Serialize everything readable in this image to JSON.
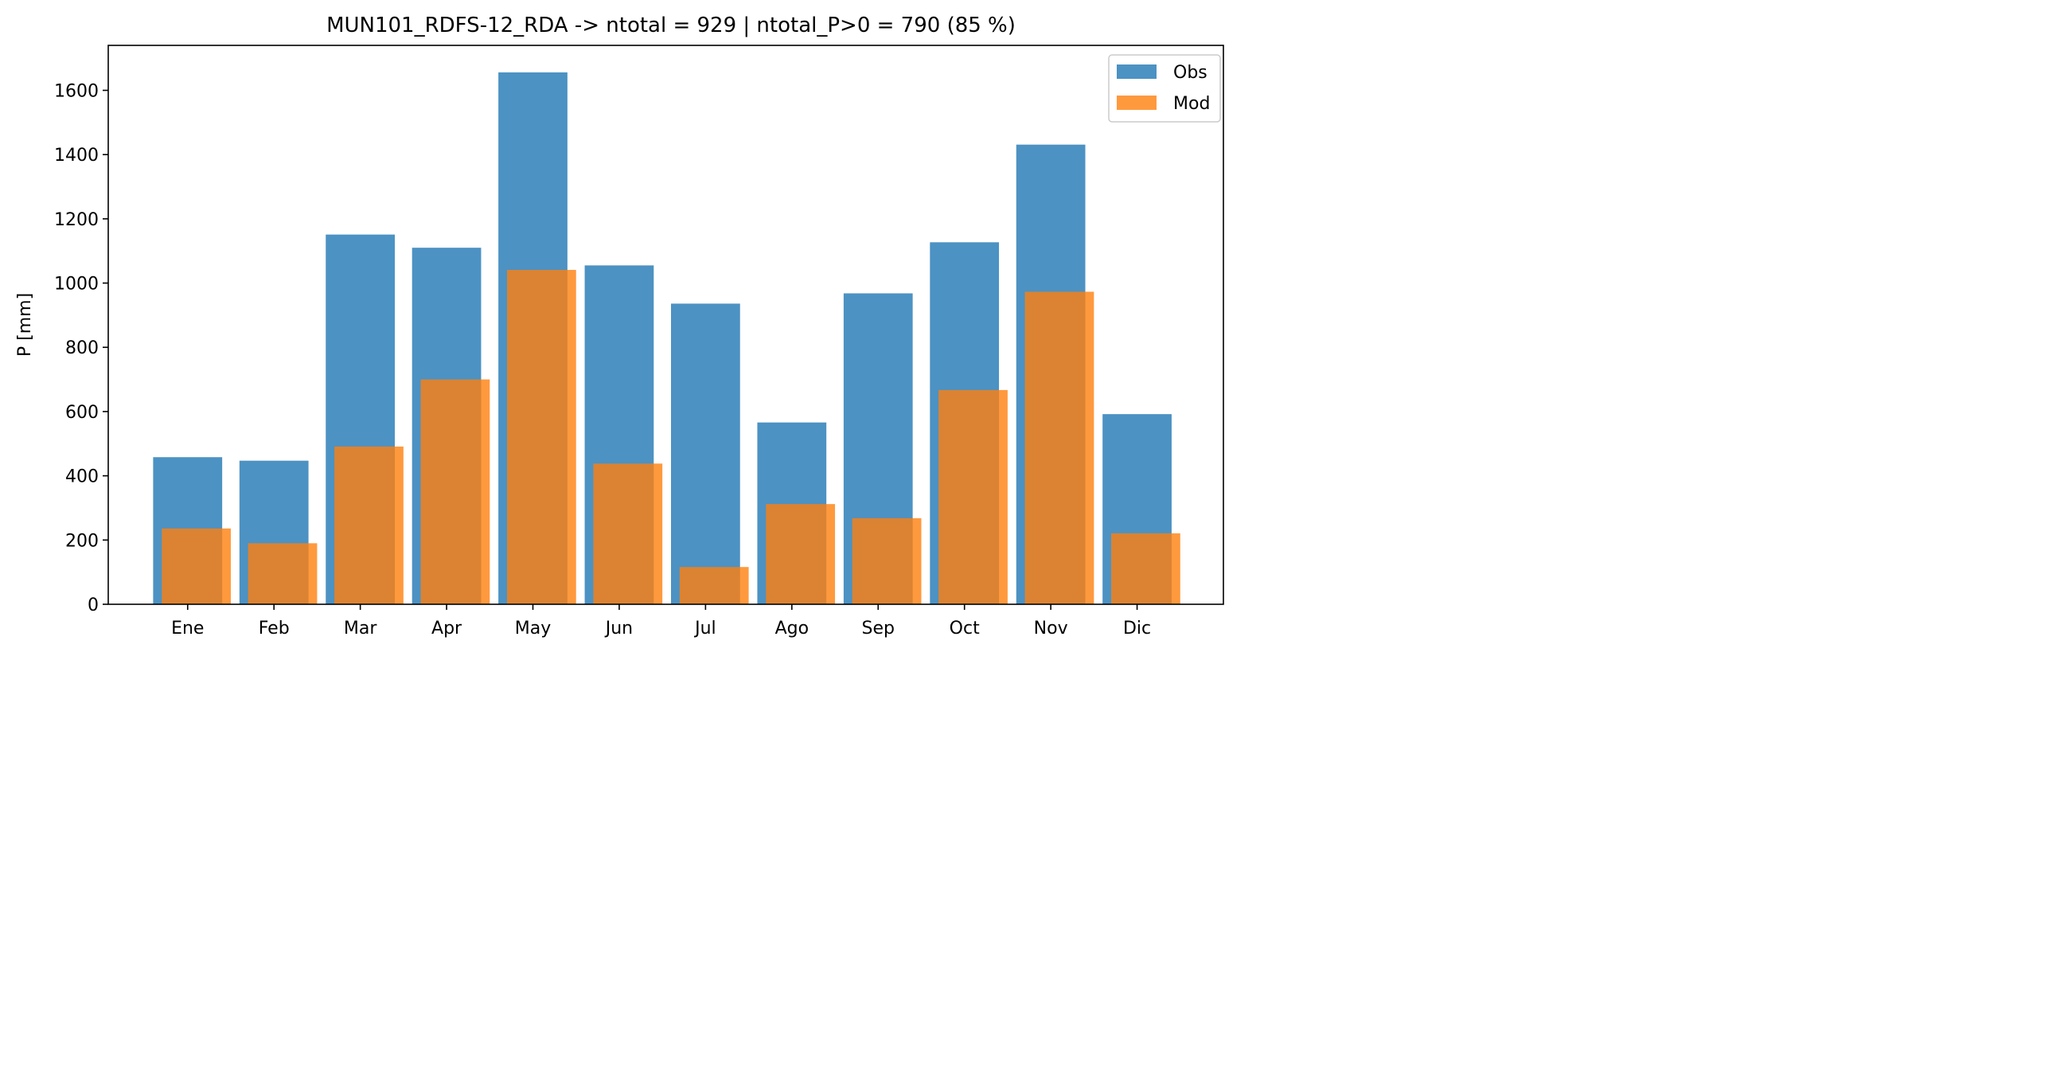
{
  "chart_data": {
    "type": "bar",
    "title": "MUN101_RDFS-12_RDA -> ntotal = 929 | ntotal_P>0 = 790 (85 %)",
    "xlabel": "",
    "ylabel": "P [mm]",
    "categories": [
      "Ene",
      "Feb",
      "Mar",
      "Apr",
      "May",
      "Jun",
      "Jul",
      "Ago",
      "Sep",
      "Oct",
      "Nov",
      "Dic"
    ],
    "series": [
      {
        "name": "Obs",
        "color": "#1f77b4",
        "values": [
          458,
          447,
          1151,
          1110,
          1656,
          1055,
          936,
          566,
          968,
          1127,
          1431,
          592
        ]
      },
      {
        "name": "Mod",
        "color": "#ff7f0e",
        "values": [
          236,
          190,
          491,
          700,
          1041,
          438,
          116,
          312,
          268,
          667,
          973,
          221
        ]
      }
    ],
    "ylim": [
      0,
      1740
    ],
    "yticks": [
      0,
      200,
      400,
      600,
      800,
      1000,
      1200,
      1400,
      1600
    ],
    "grid": false,
    "legend_position": "top-right"
  }
}
